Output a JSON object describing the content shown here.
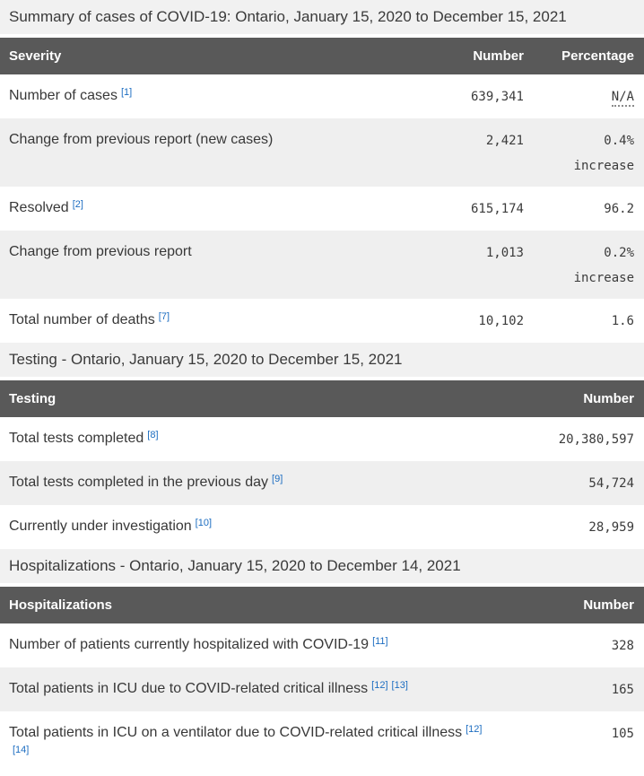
{
  "colors": {
    "header_bg": "#595959",
    "caption_bg": "#f1f1f1",
    "zebra_row_bg": "#efefef",
    "link_blue": "#1c6dc1",
    "text": "#3b3b3b"
  },
  "captions": {
    "summary": "Summary of cases of COVID-19: Ontario, January 15, 2020 to December 15, 2021",
    "testing": "Testing - Ontario, January 15, 2020 to December 15, 2021",
    "hospitalizations": "Hospitalizations - Ontario, January 15, 2020 to December 14, 2021"
  },
  "tables": {
    "severity": {
      "headers": [
        "Severity",
        "Number",
        "Percentage"
      ],
      "rows": [
        {
          "label": "Number of cases",
          "refs": [
            "[1]"
          ],
          "number": "639,341",
          "pct": "N/A"
        },
        {
          "label": "Change from previous report (new cases)",
          "refs": [],
          "number": "2,421",
          "pct": "0.4%",
          "pct_qualifier": "increase"
        },
        {
          "label": "Resolved",
          "refs": [
            "[2]"
          ],
          "number": "615,174",
          "pct": "96.2"
        },
        {
          "label": "Change from previous report",
          "refs": [],
          "number": "1,013",
          "pct": "0.2%",
          "pct_qualifier": "increase"
        },
        {
          "label": "Total number of deaths",
          "refs": [
            "[7]"
          ],
          "number": "10,102",
          "pct": "1.6"
        }
      ]
    },
    "testing": {
      "headers": [
        "Testing",
        "Number"
      ],
      "rows": [
        {
          "label": "Total tests completed",
          "refs": [
            "[8]"
          ],
          "number": "20,380,597"
        },
        {
          "label": "Total tests completed in the previous day",
          "refs": [
            "[9]"
          ],
          "number": "54,724"
        },
        {
          "label": "Currently under investigation",
          "refs": [
            "[10]"
          ],
          "number": "28,959"
        }
      ]
    },
    "hospitalizations": {
      "headers": [
        "Hospitalizations",
        "Number"
      ],
      "rows": [
        {
          "label": "Number of patients currently hospitalized with COVID-19",
          "refs": [
            "[11]"
          ],
          "number": "328"
        },
        {
          "label": "Total patients in ICU due to COVID-related critical illness",
          "refs": [
            "[12]",
            "[13]"
          ],
          "number": "165"
        },
        {
          "label": "Total patients in ICU on a ventilator due to COVID-related critical illness",
          "refs": [
            "[12]",
            "[14]"
          ],
          "number": "105"
        }
      ]
    }
  }
}
